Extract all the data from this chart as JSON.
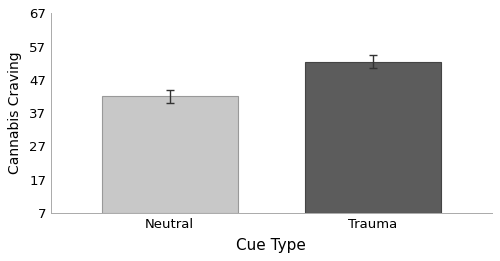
{
  "categories": [
    "Neutral",
    "Trauma"
  ],
  "values": [
    42.0,
    52.5
  ],
  "errors": [
    2.0,
    2.0
  ],
  "bar_colors": [
    "#c8c8c8",
    "#5c5c5c"
  ],
  "bar_edgecolors": [
    "#999999",
    "#444444"
  ],
  "xlabel": "Cue Type",
  "ylabel": "Cannabis Craving",
  "ylim": [
    7,
    67
  ],
  "yticks": [
    7,
    17,
    27,
    37,
    47,
    57,
    67
  ],
  "title": "",
  "bar_width": 0.4,
  "xlabel_fontsize": 11,
  "ylabel_fontsize": 10,
  "tick_fontsize": 9.5,
  "error_capsize": 3,
  "error_color": "#333333",
  "error_linewidth": 1.0,
  "background_color": "#ffffff",
  "x_positions": [
    0.3,
    0.9
  ],
  "xlim": [
    -0.05,
    1.25
  ]
}
